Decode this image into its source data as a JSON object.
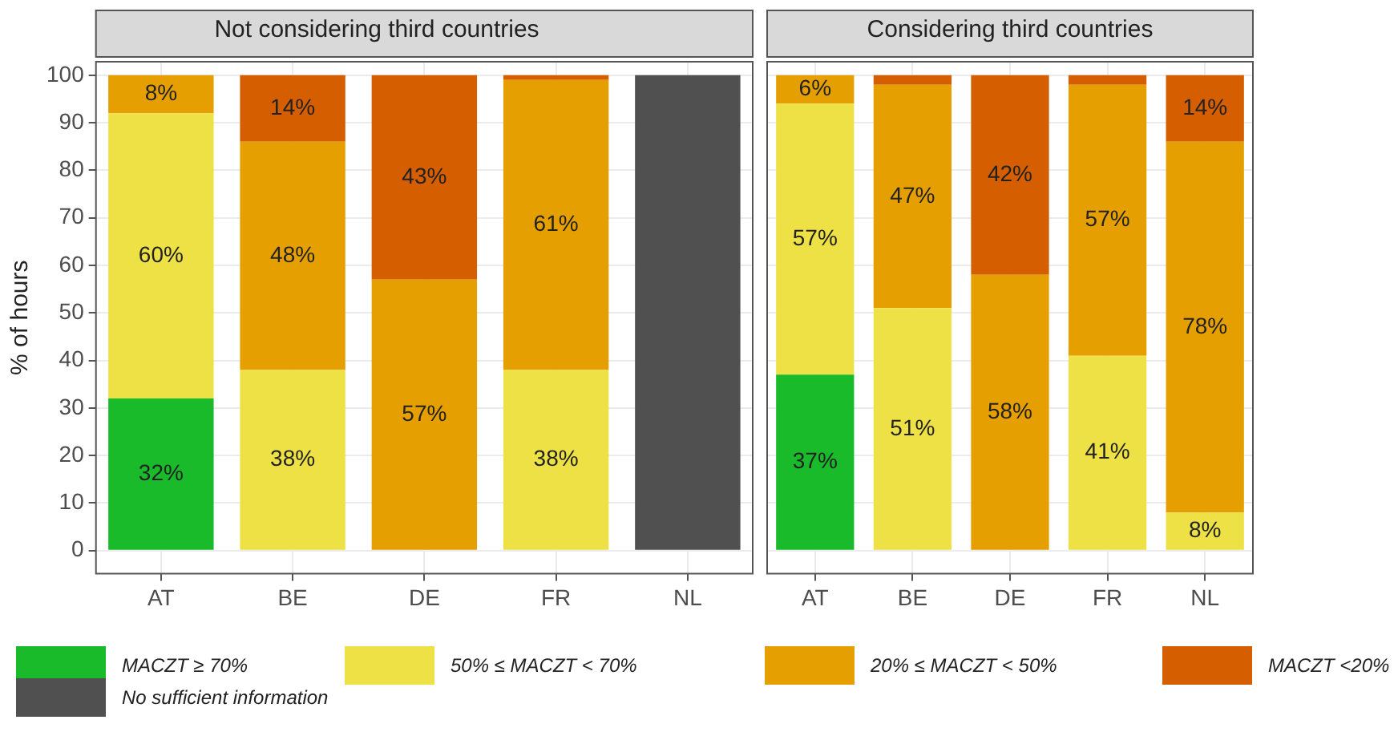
{
  "chart_data": [
    {
      "type": "bar",
      "title": "Not considering third countries",
      "ylabel": "% of hours",
      "categories": [
        "AT",
        "BE",
        "DE",
        "FR",
        "NL"
      ],
      "stacked": true,
      "ylim": [
        -5,
        103
      ],
      "yticks": [
        0,
        10,
        20,
        30,
        40,
        50,
        60,
        70,
        80,
        90,
        100
      ],
      "grid": true,
      "legend": "bottom",
      "series": [
        {
          "name": "MACZT ≥ 70%",
          "color": "#19bb2b",
          "values": [
            32,
            0,
            0,
            0,
            0
          ],
          "value_labels": [
            "32%",
            null,
            null,
            null,
            null
          ]
        },
        {
          "name": "50% ≤ MACZT < 70%",
          "color": "#ede146",
          "values": [
            60,
            38,
            0,
            38,
            0
          ],
          "value_labels": [
            "60%",
            "38%",
            null,
            "38%",
            null
          ]
        },
        {
          "name": "20% ≤ MACZT < 50%",
          "color": "#e69f00",
          "values": [
            8,
            48,
            57,
            61,
            0
          ],
          "value_labels": [
            "8%",
            "48%",
            "57%",
            "61%",
            null
          ]
        },
        {
          "name": "MACZT <20%",
          "color": "#d55e00",
          "values": [
            0,
            14,
            43,
            1,
            0
          ],
          "value_labels": [
            null,
            "14%",
            "43%",
            null,
            null
          ]
        },
        {
          "name": "No sufficient information",
          "color": "#505050",
          "values": [
            0,
            0,
            0,
            0,
            100
          ],
          "value_labels": [
            null,
            null,
            null,
            null,
            null
          ]
        }
      ]
    },
    {
      "type": "bar",
      "title": "Considering third countries",
      "categories": [
        "AT",
        "BE",
        "DE",
        "FR",
        "NL"
      ],
      "stacked": true,
      "ylim": [
        -5,
        103
      ],
      "yticks": [
        0,
        10,
        20,
        30,
        40,
        50,
        60,
        70,
        80,
        90,
        100
      ],
      "grid": true,
      "tick_labels": "x",
      "series": [
        {
          "color": "#19bb2b",
          "values": [
            37,
            0,
            0,
            0,
            0
          ],
          "value_labels": [
            "37%",
            null,
            null,
            null,
            null
          ]
        },
        {
          "color": "#ede146",
          "values": [
            57,
            51,
            0,
            41,
            8
          ],
          "value_labels": [
            "57%",
            "51%",
            null,
            "41%",
            "8%"
          ]
        },
        {
          "color": "#e69f00",
          "values": [
            6,
            47,
            58,
            57,
            78
          ],
          "value_labels": [
            "6%",
            "47%",
            "58%",
            "57%",
            "78%"
          ]
        },
        {
          "color": "#d55e00",
          "values": [
            0,
            2,
            42,
            2,
            14
          ],
          "value_labels": [
            null,
            null,
            "42%",
            null,
            "14%"
          ]
        }
      ]
    }
  ]
}
